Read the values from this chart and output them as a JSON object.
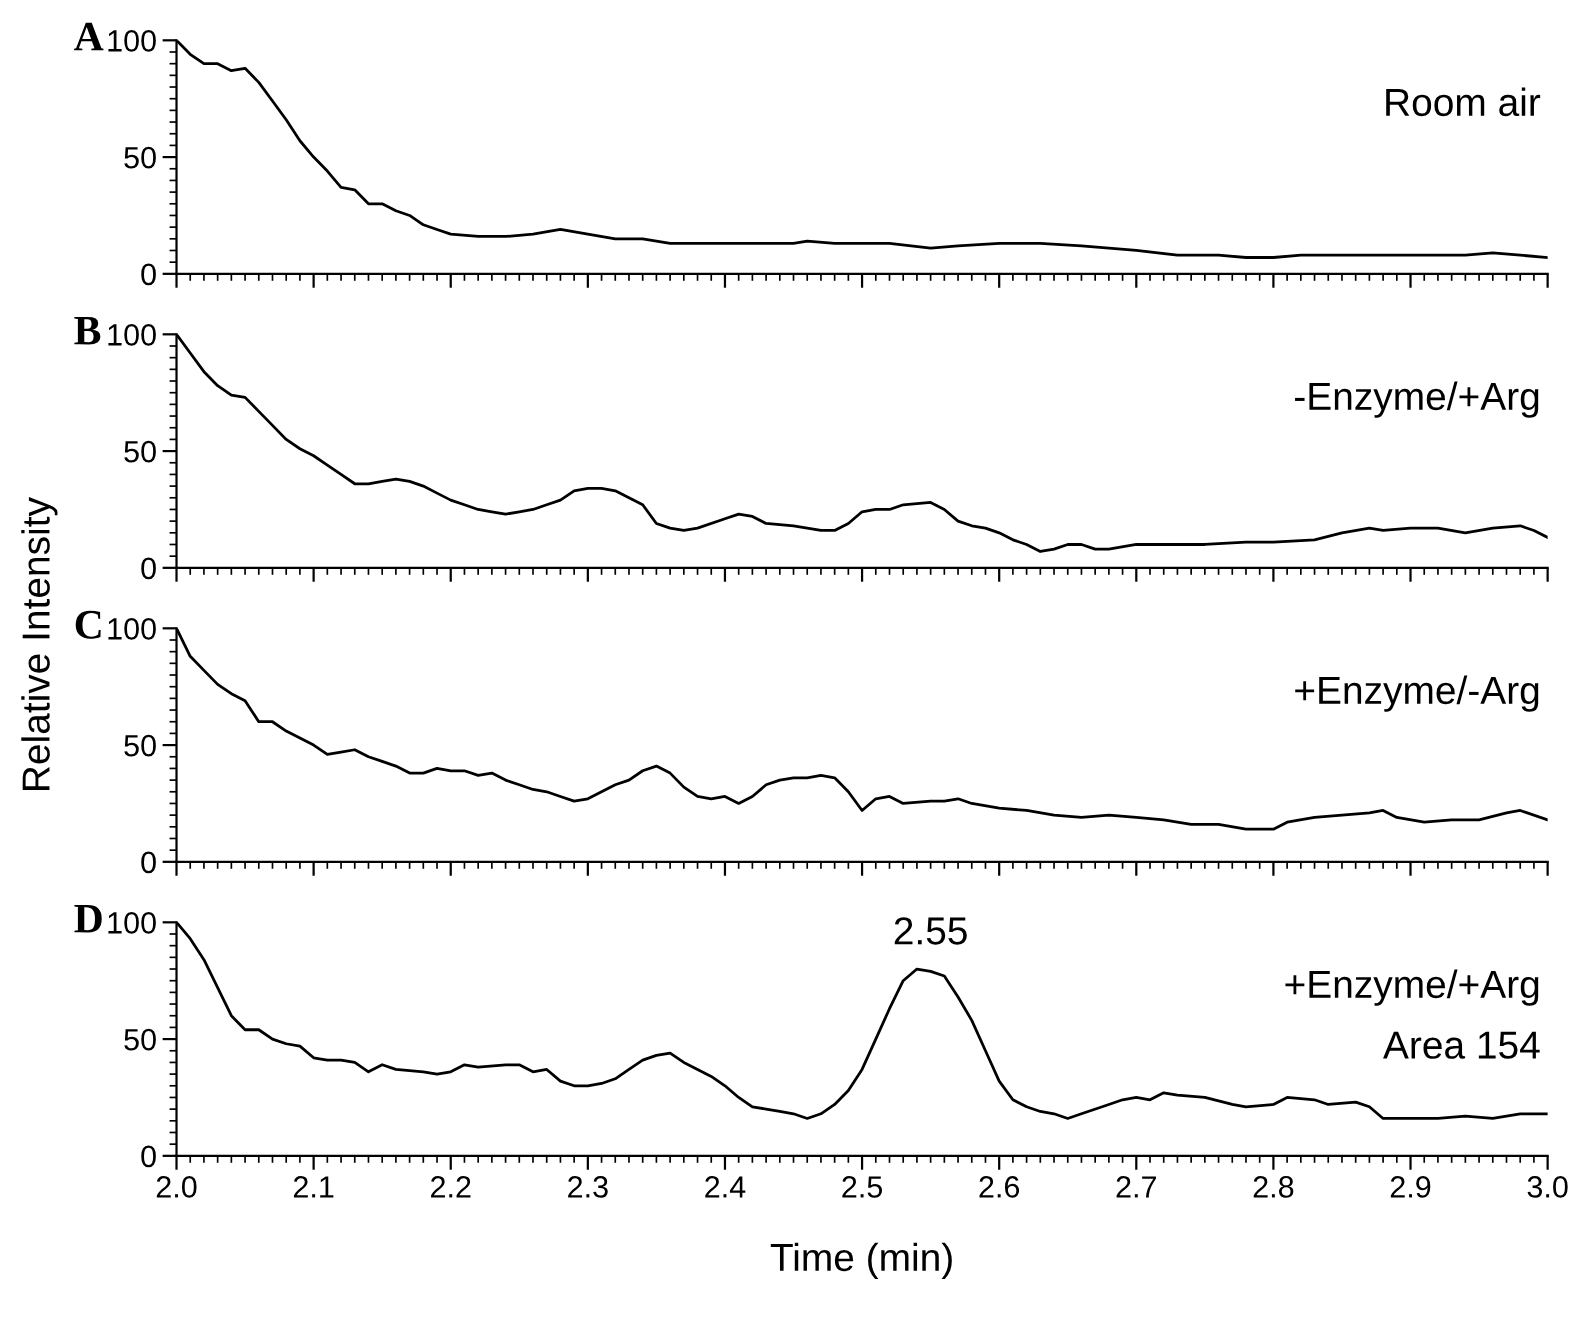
{
  "chart_data": [
    {
      "type": "line",
      "title": "A",
      "annotations": [
        "Room air"
      ],
      "xlim": [
        2.0,
        3.0
      ],
      "ylim": [
        0,
        100
      ],
      "yticks": [
        0,
        50,
        100
      ],
      "tick_labels": "y",
      "grid": false,
      "series": [
        {
          "color": "#000000",
          "x": [
            2.0,
            2.01,
            2.02,
            2.03,
            2.04,
            2.05,
            2.06,
            2.07,
            2.08,
            2.09,
            2.1,
            2.11,
            2.12,
            2.13,
            2.14,
            2.15,
            2.16,
            2.17,
            2.18,
            2.19,
            2.2,
            2.22,
            2.24,
            2.26,
            2.28,
            2.3,
            2.32,
            2.34,
            2.36,
            2.4,
            2.45,
            2.46,
            2.48,
            2.52,
            2.55,
            2.57,
            2.6,
            2.63,
            2.66,
            2.7,
            2.73,
            2.76,
            2.78,
            2.8,
            2.82,
            2.86,
            2.9,
            2.94,
            2.96,
            2.98,
            3.0
          ],
          "values": [
            100,
            94,
            90,
            90,
            87,
            88,
            82,
            74,
            66,
            57,
            50,
            44,
            37,
            36,
            30,
            30,
            27,
            25,
            21,
            19,
            17,
            16,
            16,
            17,
            19,
            17,
            15,
            15,
            13,
            13,
            13,
            14,
            13,
            13,
            11,
            12,
            13,
            13,
            12,
            10,
            8,
            8,
            7,
            7,
            8,
            8,
            8,
            8,
            9,
            8,
            7
          ]
        }
      ]
    },
    {
      "type": "line",
      "title": "B",
      "annotations": [
        "-Enzyme/+Arg"
      ],
      "xlim": [
        2.0,
        3.0
      ],
      "ylim": [
        0,
        100
      ],
      "yticks": [
        0,
        50,
        100
      ],
      "tick_labels": "y",
      "grid": false,
      "series": [
        {
          "color": "#000000",
          "x": [
            2.0,
            2.01,
            2.02,
            2.03,
            2.04,
            2.05,
            2.06,
            2.07,
            2.08,
            2.09,
            2.1,
            2.11,
            2.12,
            2.13,
            2.14,
            2.15,
            2.16,
            2.17,
            2.18,
            2.19,
            2.2,
            2.21,
            2.22,
            2.23,
            2.24,
            2.25,
            2.26,
            2.27,
            2.28,
            2.29,
            2.3,
            2.31,
            2.32,
            2.33,
            2.34,
            2.35,
            2.36,
            2.37,
            2.38,
            2.4,
            2.41,
            2.42,
            2.43,
            2.45,
            2.47,
            2.48,
            2.49,
            2.5,
            2.51,
            2.52,
            2.53,
            2.55,
            2.56,
            2.57,
            2.58,
            2.59,
            2.6,
            2.61,
            2.62,
            2.63,
            2.64,
            2.65,
            2.66,
            2.67,
            2.68,
            2.7,
            2.72,
            2.75,
            2.78,
            2.8,
            2.83,
            2.85,
            2.87,
            2.88,
            2.9,
            2.92,
            2.94,
            2.96,
            2.98,
            2.99,
            3.0
          ],
          "values": [
            100,
            92,
            84,
            78,
            74,
            73,
            67,
            61,
            55,
            51,
            48,
            44,
            40,
            36,
            36,
            37,
            38,
            37,
            35,
            32,
            29,
            27,
            25,
            24,
            23,
            24,
            25,
            27,
            29,
            33,
            34,
            34,
            33,
            30,
            27,
            19,
            17,
            16,
            17,
            21,
            23,
            22,
            19,
            18,
            16,
            16,
            19,
            24,
            25,
            25,
            27,
            28,
            25,
            20,
            18,
            17,
            15,
            12,
            10,
            7,
            8,
            10,
            10,
            8,
            8,
            10,
            10,
            10,
            11,
            11,
            12,
            15,
            17,
            16,
            17,
            17,
            15,
            17,
            18,
            16,
            13
          ]
        }
      ]
    },
    {
      "type": "line",
      "title": "C",
      "ylabel": "Relative Intensity",
      "annotations": [
        "+Enzyme/-Arg"
      ],
      "xlim": [
        2.0,
        3.0
      ],
      "ylim": [
        0,
        100
      ],
      "yticks": [
        0,
        50,
        100
      ],
      "tick_labels": "y",
      "grid": false,
      "series": [
        {
          "color": "#000000",
          "x": [
            2.0,
            2.01,
            2.02,
            2.03,
            2.04,
            2.05,
            2.06,
            2.07,
            2.08,
            2.09,
            2.1,
            2.11,
            2.12,
            2.13,
            2.14,
            2.15,
            2.16,
            2.17,
            2.18,
            2.19,
            2.2,
            2.21,
            2.22,
            2.23,
            2.24,
            2.25,
            2.26,
            2.27,
            2.28,
            2.29,
            2.3,
            2.31,
            2.32,
            2.33,
            2.34,
            2.35,
            2.36,
            2.37,
            2.38,
            2.39,
            2.4,
            2.41,
            2.42,
            2.43,
            2.44,
            2.45,
            2.46,
            2.47,
            2.48,
            2.49,
            2.5,
            2.51,
            2.52,
            2.53,
            2.55,
            2.56,
            2.57,
            2.58,
            2.6,
            2.62,
            2.64,
            2.66,
            2.68,
            2.7,
            2.72,
            2.74,
            2.76,
            2.78,
            2.8,
            2.81,
            2.83,
            2.85,
            2.87,
            2.88,
            2.89,
            2.91,
            2.93,
            2.95,
            2.97,
            2.98,
            3.0
          ],
          "values": [
            100,
            88,
            82,
            76,
            72,
            69,
            60,
            60,
            56,
            53,
            50,
            46,
            47,
            48,
            45,
            43,
            41,
            38,
            38,
            40,
            39,
            39,
            37,
            38,
            35,
            33,
            31,
            30,
            28,
            26,
            27,
            30,
            33,
            35,
            39,
            41,
            38,
            32,
            28,
            27,
            28,
            25,
            28,
            33,
            35,
            36,
            36,
            37,
            36,
            30,
            22,
            27,
            28,
            25,
            26,
            26,
            27,
            25,
            23,
            22,
            20,
            19,
            20,
            19,
            18,
            16,
            16,
            14,
            14,
            17,
            19,
            20,
            21,
            22,
            19,
            17,
            18,
            18,
            21,
            22,
            18
          ]
        }
      ]
    },
    {
      "type": "line",
      "title": "D",
      "xlabel": "Time (min)",
      "annotations": [
        {
          "text": "2.55",
          "x": 2.55,
          "y": 80
        },
        "+Enzyme/+Arg",
        "Area 154"
      ],
      "xlim": [
        2.0,
        3.0
      ],
      "xticks": [
        {
          "value": 2.0,
          "label": "2.0"
        },
        2.1,
        2.2,
        2.3,
        2.4,
        2.5,
        2.6,
        2.7,
        2.8,
        2.9,
        {
          "value": 3.0,
          "label": "3.0"
        }
      ],
      "ylim": [
        0,
        100
      ],
      "yticks": [
        0,
        50,
        100
      ],
      "grid": false,
      "series": [
        {
          "color": "#000000",
          "x": [
            2.0,
            2.01,
            2.02,
            2.03,
            2.04,
            2.05,
            2.06,
            2.07,
            2.08,
            2.09,
            2.1,
            2.11,
            2.12,
            2.13,
            2.14,
            2.15,
            2.16,
            2.18,
            2.19,
            2.2,
            2.21,
            2.22,
            2.24,
            2.25,
            2.26,
            2.27,
            2.28,
            2.29,
            2.3,
            2.31,
            2.32,
            2.33,
            2.34,
            2.35,
            2.36,
            2.37,
            2.38,
            2.39,
            2.4,
            2.41,
            2.42,
            2.43,
            2.44,
            2.45,
            2.46,
            2.47,
            2.48,
            2.49,
            2.5,
            2.51,
            2.52,
            2.53,
            2.54,
            2.55,
            2.56,
            2.57,
            2.58,
            2.59,
            2.6,
            2.61,
            2.62,
            2.63,
            2.64,
            2.65,
            2.66,
            2.68,
            2.69,
            2.7,
            2.71,
            2.72,
            2.73,
            2.75,
            2.77,
            2.78,
            2.8,
            2.81,
            2.83,
            2.84,
            2.86,
            2.87,
            2.88,
            2.9,
            2.92,
            2.94,
            2.96,
            2.98,
            3.0
          ],
          "values": [
            100,
            93,
            84,
            72,
            60,
            54,
            54,
            50,
            48,
            47,
            42,
            41,
            41,
            40,
            36,
            39,
            37,
            36,
            35,
            36,
            39,
            38,
            39,
            39,
            36,
            37,
            32,
            30,
            30,
            31,
            33,
            37,
            41,
            43,
            44,
            40,
            37,
            34,
            30,
            25,
            21,
            20,
            19,
            18,
            16,
            18,
            22,
            28,
            37,
            50,
            63,
            75,
            80,
            79,
            77,
            68,
            58,
            45,
            32,
            24,
            21,
            19,
            18,
            16,
            18,
            22,
            24,
            25,
            24,
            27,
            26,
            25,
            22,
            21,
            22,
            25,
            24,
            22,
            23,
            21,
            16,
            16,
            16,
            17,
            16,
            18,
            18
          ]
        }
      ]
    }
  ]
}
